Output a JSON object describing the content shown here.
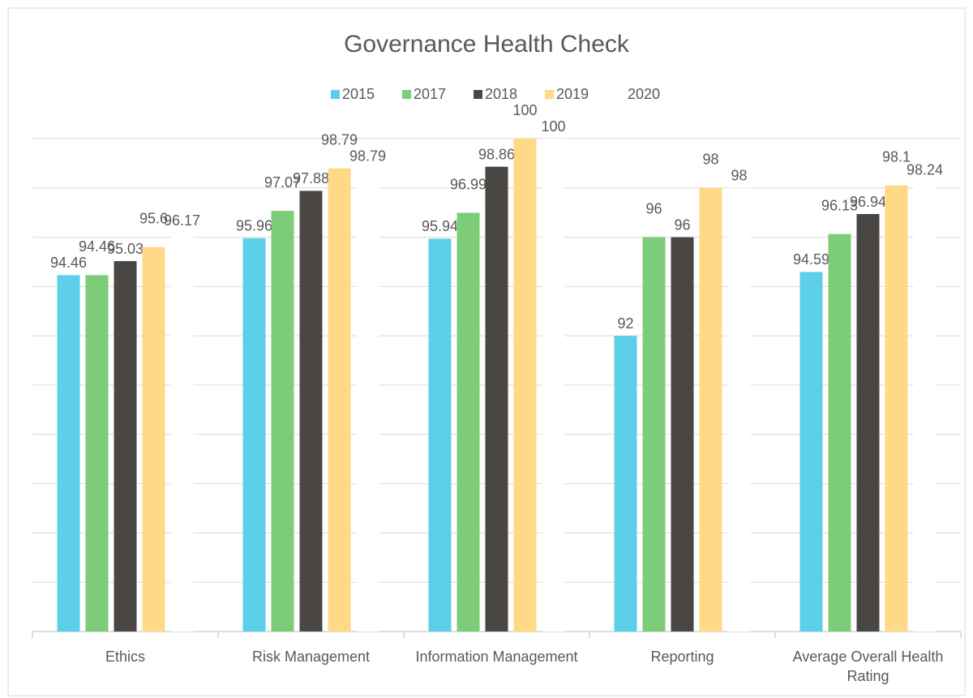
{
  "chart_data": {
    "type": "bar",
    "title": "Governance Health Check",
    "categories": [
      "Ethics",
      "Risk Management",
      "Information Management",
      "Reporting",
      "Average Overall Health Rating"
    ],
    "series": [
      {
        "name": "2015",
        "color": "#5bd0e8",
        "values": [
          94.46,
          95.96,
          95.94,
          92,
          94.59
        ]
      },
      {
        "name": "2017",
        "color": "#7dcc78",
        "values": [
          94.46,
          97.07,
          96.99,
          96,
          96.13
        ]
      },
      {
        "name": "2018",
        "color": "#4a4644",
        "values": [
          95.03,
          97.88,
          98.86,
          96,
          96.94
        ]
      },
      {
        "name": "2019",
        "color": "#ffd985",
        "values": [
          95.6,
          98.79,
          100,
          98,
          98.1
        ]
      },
      {
        "name": "2020",
        "color": "#ffffff",
        "values": [
          96.17,
          98.79,
          100,
          98,
          98.24
        ]
      }
    ],
    "ylim": [
      80,
      100
    ],
    "yticks": [
      80,
      82,
      84,
      86,
      88,
      90,
      92,
      94,
      96,
      98,
      100
    ],
    "grid": true
  }
}
